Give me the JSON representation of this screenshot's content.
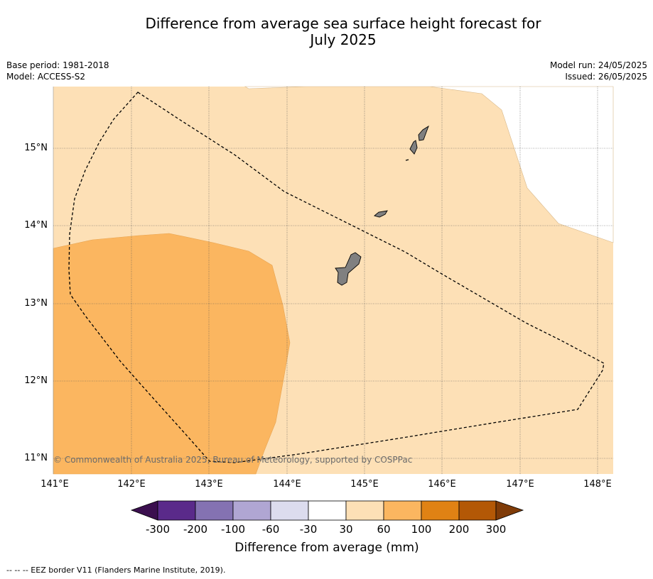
{
  "title_line1": "Difference from average sea surface height forecast for",
  "title_line2": "July 2025",
  "meta_left": {
    "base_period": "Base period: 1981-2018",
    "model": "Model: ACCESS-S2"
  },
  "meta_right": {
    "model_run": "Model run: 24/05/2025",
    "issued": "Issued: 26/05/2025"
  },
  "copyright": "© Commonwealth of Australia 2025, Bureau of Meteorology, supported by COSPPac",
  "x_ticks": [
    "141°E",
    "142°E",
    "143°E",
    "144°E",
    "145°E",
    "146°E",
    "147°E",
    "148°E"
  ],
  "y_ticks": [
    "15°N",
    "14°N",
    "13°N",
    "12°N",
    "11°N"
  ],
  "colorbar": {
    "labels": [
      "-300",
      "-200",
      "-100",
      "-60",
      "-30",
      "30",
      "60",
      "100",
      "200",
      "300"
    ],
    "colors": [
      "#3b0f4f",
      "#5a2a8a",
      "#8472b2",
      "#b0a6d3",
      "#dcdcee",
      "#ffffff",
      "#fde0b6",
      "#fbb660",
      "#e08214",
      "#b35806",
      "#7f3b08"
    ],
    "title": "Difference from average (mm)"
  },
  "legend_footer": "--  --  -- EEZ border V11 (Flanders Marine Institute, 2019).",
  "map_colors": {
    "band_30_60": "#fde0b6",
    "band_60_100": "#fbb660",
    "land": "#808080",
    "eez": "#000000"
  }
}
